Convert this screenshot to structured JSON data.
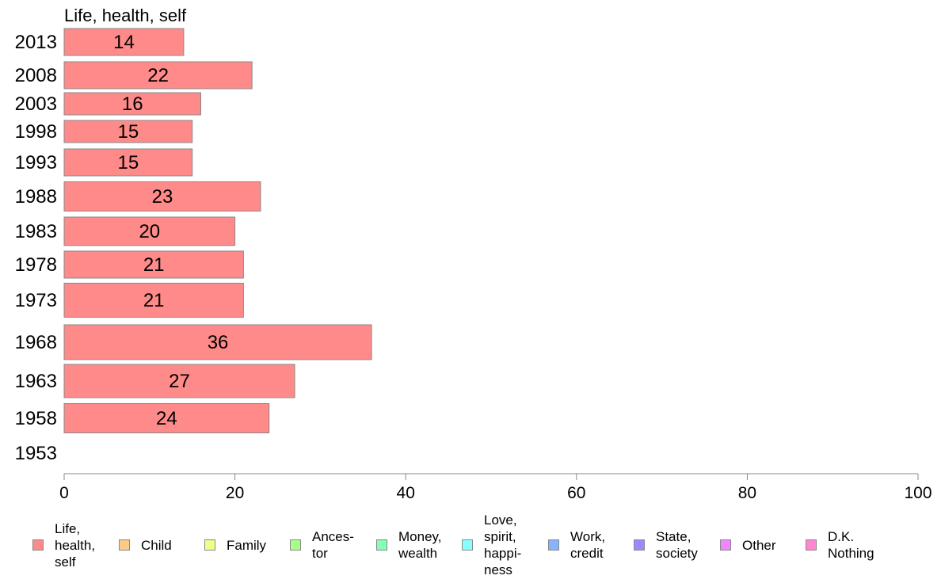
{
  "chart_data": {
    "type": "bar",
    "orientation": "horizontal",
    "title": "Life, health, self",
    "categories": [
      "2013",
      "2008",
      "2003",
      "1998",
      "1993",
      "1988",
      "1983",
      "1978",
      "1973",
      "1968",
      "1963",
      "1958",
      "1953"
    ],
    "series": [
      {
        "name": "Life, health, self",
        "values": [
          14,
          22,
          16,
          15,
          15,
          23,
          20,
          21,
          21,
          36,
          27,
          24,
          null
        ],
        "data_labels": [
          "14",
          "22",
          "16",
          "15",
          "15",
          "23",
          "20",
          "21",
          "21",
          "36",
          "27",
          "24",
          ""
        ]
      }
    ],
    "xlim": [
      0,
      100
    ],
    "xticks": [
      "0",
      "20",
      "40",
      "60",
      "80",
      "100"
    ],
    "grid": false,
    "bar_color": "#ff8a8a",
    "bar_border_color": "#888888",
    "legend_position": "bottom",
    "legend": [
      {
        "label": "Life,\nhealth,\nself",
        "color": "#ff8a8a"
      },
      {
        "label": "Child",
        "color": "#ffc987"
      },
      {
        "label": "Family",
        "color": "#efff87"
      },
      {
        "label": "Ances-\ntor",
        "color": "#a6ff87"
      },
      {
        "label": "Money,\nwealth",
        "color": "#87ffb4"
      },
      {
        "label": "Love,\nspirit,\nhappi-\nness",
        "color": "#87ffff"
      },
      {
        "label": "Work,\ncredit",
        "color": "#87b4ff"
      },
      {
        "label": "State,\nsociety",
        "color": "#a087ff"
      },
      {
        "label": "Other",
        "color": "#f087ff"
      },
      {
        "label": "D.K.\nNothing",
        "color": "#ff87d2"
      }
    ]
  }
}
